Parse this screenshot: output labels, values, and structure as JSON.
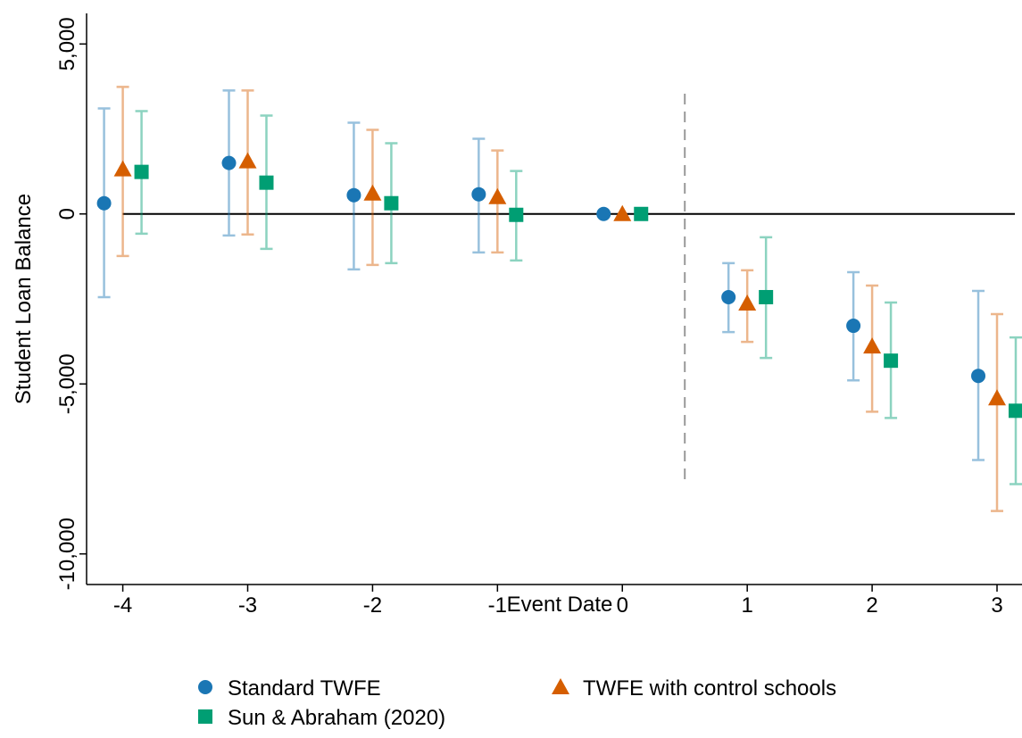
{
  "chart_data": {
    "type": "errorbar",
    "x_label": "Event Date",
    "y_label": "Student Loan Balance",
    "xlim": [
      -4.29,
      3.2
    ],
    "xticks": [
      -4,
      -3,
      -2,
      -1,
      0,
      1,
      2,
      3
    ],
    "ylim": [
      -10900,
      5900
    ],
    "yticks": [
      {
        "value": 5000,
        "label": "5,000"
      },
      0,
      {
        "value": -5000,
        "label": "-5,000"
      },
      {
        "value": -10000,
        "label": "-10,000"
      }
    ],
    "hline": 0,
    "vline": 0.5,
    "series": [
      {
        "name": "Standard TWFE",
        "color": "#1a76b4",
        "marker": "circle",
        "x": [
          -4.15,
          -3.15,
          -2.15,
          -1.15,
          -0.15,
          0.85,
          1.85,
          2.85
        ],
        "values": [
          316,
          1500,
          553,
          579,
          0,
          -2447,
          -3289,
          -4763
        ],
        "lower": [
          -2447,
          -632,
          -1632,
          -1132,
          null,
          -3474,
          -4895,
          -7237
        ],
        "upper": [
          3105,
          3632,
          2684,
          2211,
          null,
          -1447,
          -1711,
          -2263
        ]
      },
      {
        "name": "TWFE with control schools",
        "color": "#d55e00",
        "marker": "triangle",
        "x": [
          -4,
          -3,
          -2,
          -1,
          0,
          1,
          2,
          3
        ],
        "values": [
          1316,
          1553,
          605,
          500,
          0,
          -2632,
          -3895,
          -5421
        ],
        "lower": [
          -1237,
          -605,
          -1500,
          -1132,
          null,
          -3763,
          -5816,
          -8737
        ],
        "upper": [
          3737,
          3632,
          2474,
          1868,
          null,
          -1658,
          -2105,
          -2947
        ]
      },
      {
        "name": "Sun & Abraham (2020)",
        "color": "#009e73",
        "marker": "square",
        "x": [
          -3.85,
          -2.85,
          -1.85,
          -0.85,
          0.15,
          1.15,
          2.15,
          3.15
        ],
        "values": [
          1237,
          921,
          316,
          -26,
          0,
          -2447,
          -4316,
          -5789
        ],
        "lower": [
          -579,
          -1026,
          -1447,
          -1368,
          null,
          -4237,
          -6000,
          -7947
        ],
        "upper": [
          3026,
          2895,
          2079,
          1263,
          null,
          -684,
          -2605,
          -3632
        ]
      }
    ]
  }
}
